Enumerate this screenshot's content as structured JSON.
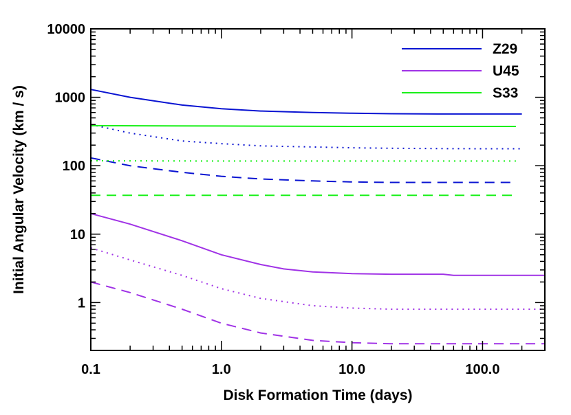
{
  "chart_data": {
    "type": "line",
    "xlabel": "Disk Formation Time (days)",
    "ylabel": "Initial Angular Velocity (km / s)",
    "x_scale": "log",
    "y_scale": "log",
    "xlim": [
      0.1,
      300
    ],
    "ylim": [
      0.2,
      10000
    ],
    "x_ticks": [
      {
        "value": 0.1,
        "label": "0.1"
      },
      {
        "value": 1,
        "label": "1.0"
      },
      {
        "value": 10,
        "label": "10.0"
      },
      {
        "value": 100,
        "label": "100.0"
      }
    ],
    "y_ticks": [
      {
        "value": 1,
        "label": "1"
      },
      {
        "value": 10,
        "label": "10"
      },
      {
        "value": 100,
        "label": "100"
      },
      {
        "value": 1000,
        "label": "1000"
      },
      {
        "value": 10000,
        "label": "10000"
      }
    ],
    "grid": false,
    "legend_position": "top-right",
    "legend": [
      {
        "label": "Z29",
        "color": "#0a14d2"
      },
      {
        "label": "U45",
        "color": "#a032e6"
      },
      {
        "label": "S33",
        "color": "#19f019"
      }
    ],
    "series": [
      {
        "name": "Z29",
        "color": "#0a14d2",
        "dash": "solid",
        "x": [
          0.1,
          0.2,
          0.5,
          1,
          2,
          5,
          10,
          20,
          50,
          100,
          200
        ],
        "y": [
          1300,
          1000,
          770,
          680,
          630,
          600,
          585,
          575,
          570,
          570,
          570
        ]
      },
      {
        "name": "Z29",
        "color": "#0a14d2",
        "dash": "dotted",
        "x": [
          0.1,
          0.2,
          0.5,
          1,
          2,
          5,
          10,
          20,
          50,
          100,
          200
        ],
        "y": [
          400,
          300,
          230,
          210,
          195,
          188,
          183,
          180,
          178,
          177,
          177
        ]
      },
      {
        "name": "Z29",
        "color": "#0a14d2",
        "dash": "dashed",
        "x": [
          0.1,
          0.2,
          0.5,
          1,
          2,
          5,
          10,
          20,
          50,
          100,
          180
        ],
        "y": [
          130,
          100,
          80,
          70,
          64,
          60,
          58,
          57,
          57,
          57,
          57
        ]
      },
      {
        "name": "S33",
        "color": "#19f019",
        "dash": "solid",
        "x": [
          0.1,
          1,
          10,
          100,
          180
        ],
        "y": [
          385,
          380,
          375,
          375,
          375
        ]
      },
      {
        "name": "S33",
        "color": "#19f019",
        "dash": "dotted",
        "x": [
          0.1,
          1,
          10,
          100,
          180
        ],
        "y": [
          118,
          117,
          117,
          117,
          117
        ]
      },
      {
        "name": "S33",
        "color": "#19f019",
        "dash": "dashed",
        "x": [
          0.1,
          1,
          10,
          100,
          180
        ],
        "y": [
          37,
          37,
          37,
          37,
          37
        ]
      },
      {
        "name": "U45",
        "color": "#a032e6",
        "dash": "solid",
        "x": [
          0.1,
          0.2,
          0.5,
          1,
          2,
          3,
          5,
          10,
          20,
          50,
          60,
          100,
          300
        ],
        "y": [
          20,
          14,
          8,
          5,
          3.6,
          3.1,
          2.8,
          2.65,
          2.6,
          2.6,
          2.5,
          2.5,
          2.5
        ]
      },
      {
        "name": "U45",
        "color": "#a032e6",
        "dash": "dotted",
        "x": [
          0.1,
          0.2,
          0.5,
          1,
          2,
          5,
          10,
          20,
          50,
          100,
          300
        ],
        "y": [
          6.3,
          4.2,
          2.5,
          1.6,
          1.15,
          0.9,
          0.83,
          0.8,
          0.8,
          0.8,
          0.8
        ]
      },
      {
        "name": "U45",
        "color": "#a032e6",
        "dash": "dashed",
        "x": [
          0.1,
          0.2,
          0.5,
          1,
          2,
          5,
          10,
          20,
          50,
          100,
          300
        ],
        "y": [
          2,
          1.4,
          0.8,
          0.5,
          0.36,
          0.28,
          0.26,
          0.25,
          0.25,
          0.25,
          0.25
        ]
      }
    ]
  }
}
